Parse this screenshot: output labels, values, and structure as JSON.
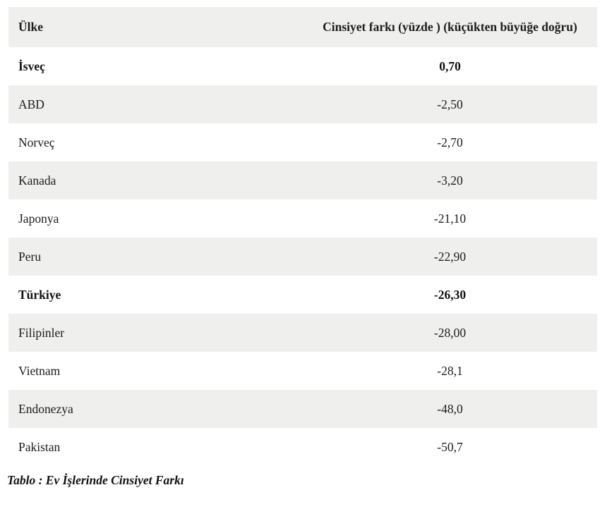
{
  "table": {
    "columns": {
      "country_label": "Ülke",
      "value_label": "Cinsiyet farkı (yüzde ) (küçükten büyüğe doğru)"
    },
    "rows": [
      {
        "country": "İsveç",
        "value": "0,70"
      },
      {
        "country": "ABD",
        "value": "-2,50"
      },
      {
        "country": "Norveç",
        "value": "-2,70"
      },
      {
        "country": "Kanada",
        "value": "-3,20"
      },
      {
        "country": "Japonya",
        "value": "-21,10"
      },
      {
        "country": "Peru",
        "value": "-22,90"
      },
      {
        "country": "Türkiye",
        "value": "-26,30"
      },
      {
        "country": "Filipinler",
        "value": "-28,00"
      },
      {
        "country": "Vietnam",
        "value": "-28,1"
      },
      {
        "country": "Endonezya",
        "value": "-48,0"
      },
      {
        "country": "Pakistan",
        "value": "-50,7"
      }
    ],
    "caption": "Tablo : Ev İşlerinde Cinsiyet Farkı"
  },
  "chart_data": {
    "type": "table",
    "title": "Tablo : Ev İşlerinde Cinsiyet Farkı",
    "columns": [
      "Ülke",
      "Cinsiyet farkı (yüzde ) (küçükten büyüğe doğru)"
    ],
    "categories": [
      "İsveç",
      "ABD",
      "Norveç",
      "Kanada",
      "Japonya",
      "Peru",
      "Türkiye",
      "Filipinler",
      "Vietnam",
      "Endonezya",
      "Pakistan"
    ],
    "values": [
      0.7,
      -2.5,
      -2.7,
      -3.2,
      -21.1,
      -22.9,
      -26.3,
      -28.0,
      -28.1,
      -48.0,
      -50.7
    ],
    "value_strings": [
      "0,70",
      "-2,50",
      "-2,70",
      "-3,20",
      "-21,10",
      "-22,90",
      "-26,30",
      "-28,00",
      "-28,1",
      "-48,0",
      "-50,7"
    ],
    "unit": "yüzde (%)",
    "sort_order": "küçükten büyüğe doğru (ascending, listed high-to-low)",
    "bold_rows": [
      "İsveç",
      "Türkiye"
    ],
    "layout": {
      "striped": true,
      "stripe_color": "#efefed",
      "header_bg": "#efefed",
      "value_align": "center"
    }
  },
  "colors": {
    "background": "#ffffff",
    "row_alt_bg": "#efefed",
    "header_bg": "#efefed",
    "text": "#1c1c1c"
  }
}
